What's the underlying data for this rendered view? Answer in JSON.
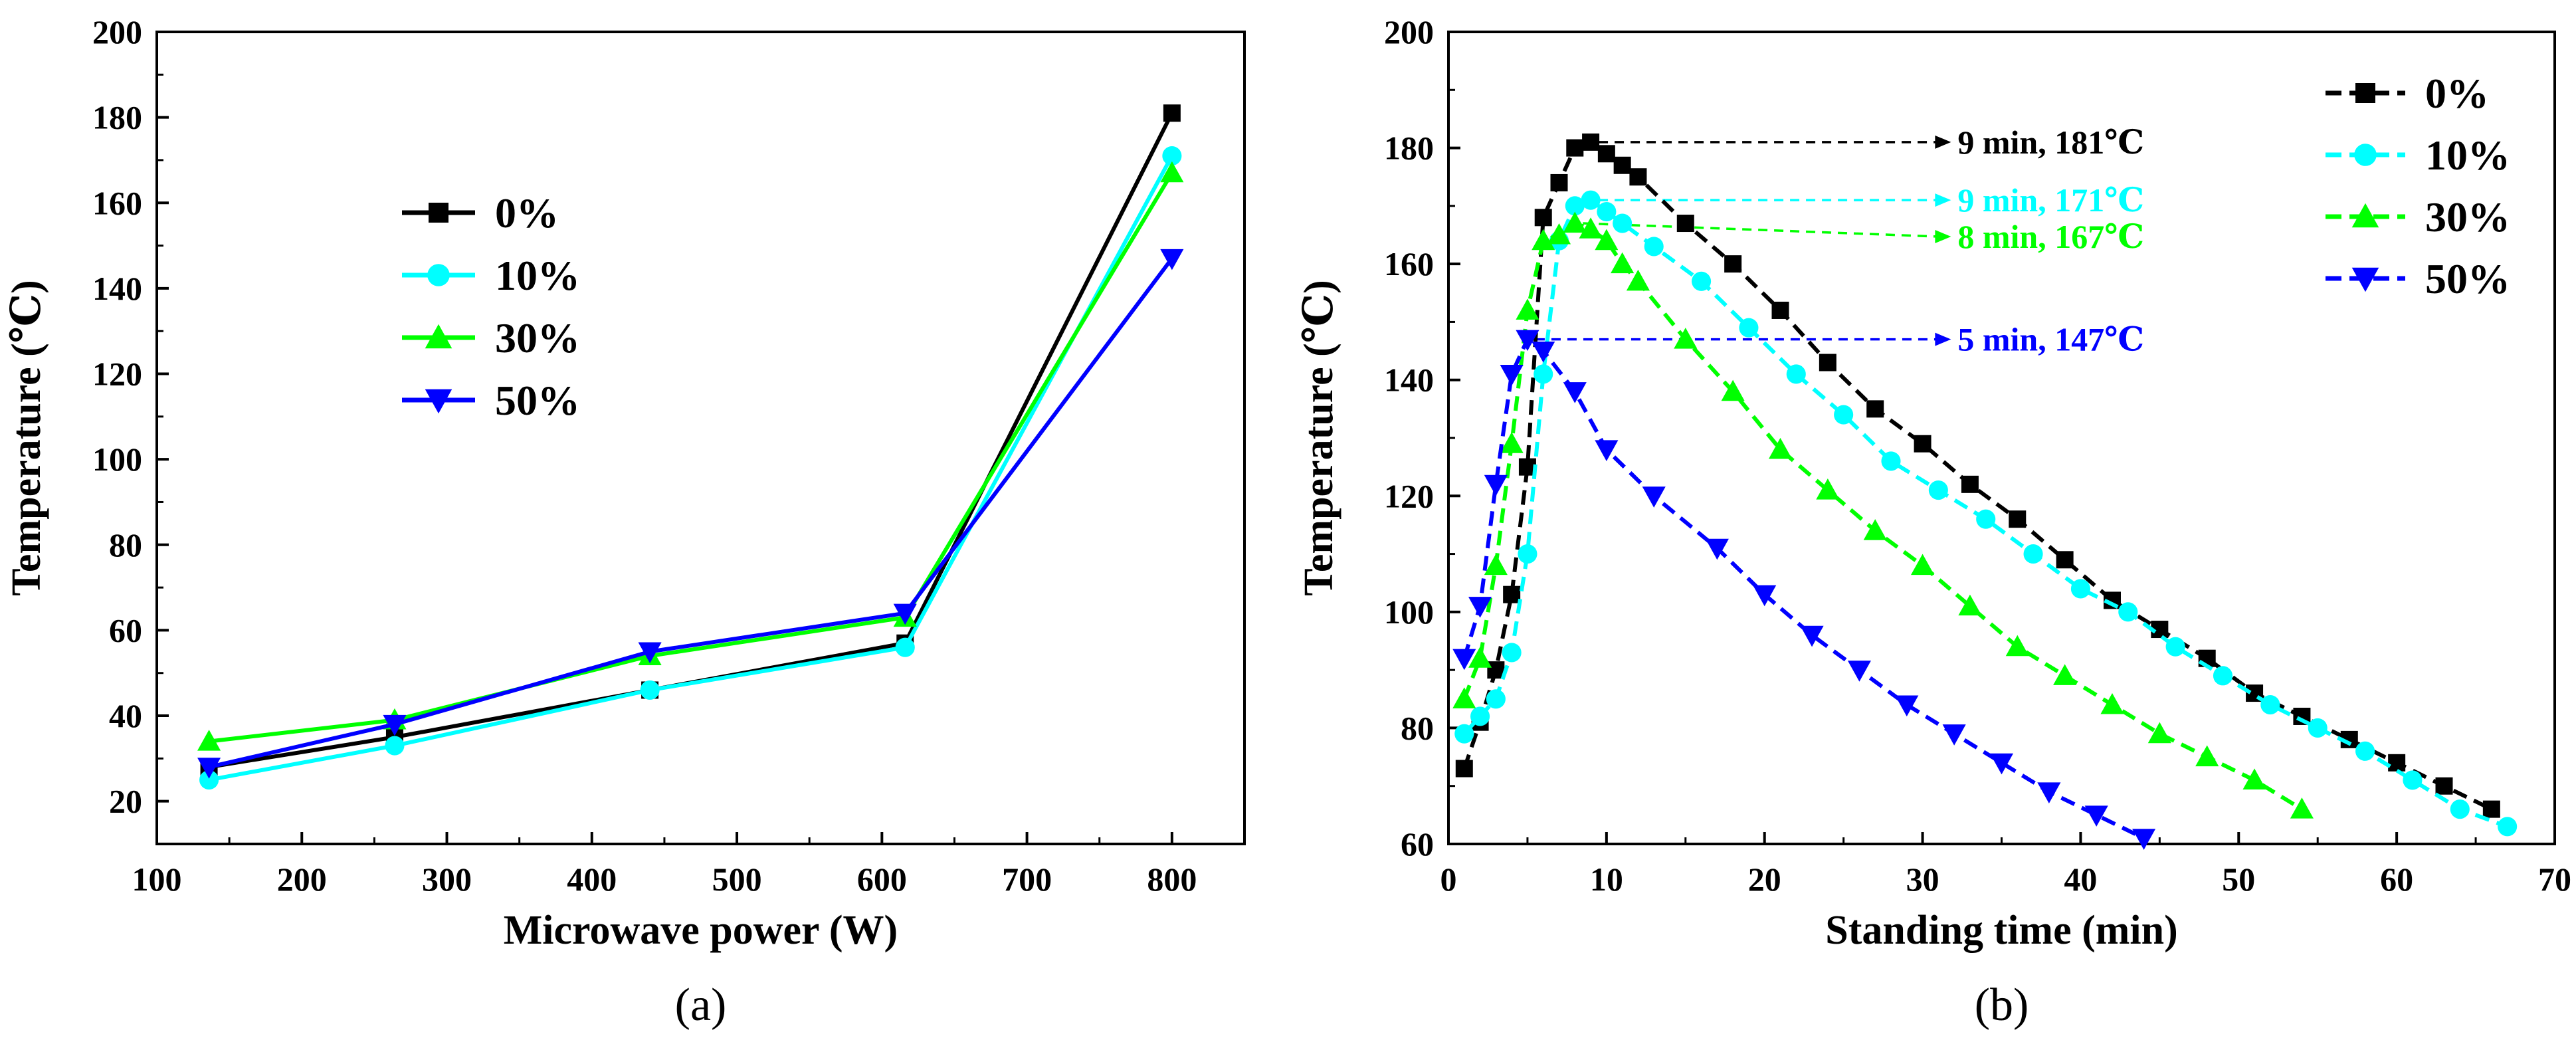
{
  "chart_data": [
    {
      "type": "line",
      "caption": "(a)",
      "xlabel": "Microwave power (W)",
      "ylabel": "Temperature (℃)",
      "xlim": [
        100,
        850
      ],
      "ylim": [
        10,
        200
      ],
      "xticks": [
        100,
        200,
        300,
        400,
        500,
        600,
        700,
        800
      ],
      "yticks": [
        20,
        40,
        60,
        80,
        100,
        120,
        140,
        160,
        180,
        200
      ],
      "legend_position": "upper-left-inside",
      "series": [
        {
          "name": "0%",
          "color": "#000000",
          "marker": "square",
          "dashed": false,
          "x": [
            136,
            264,
            440,
            616,
            800
          ],
          "values": [
            28,
            35,
            46,
            57,
            181
          ]
        },
        {
          "name": "10%",
          "color": "#00FFFF",
          "marker": "circle",
          "dashed": false,
          "x": [
            136,
            264,
            440,
            616,
            800
          ],
          "values": [
            25,
            33,
            46,
            56,
            171
          ]
        },
        {
          "name": "30%",
          "color": "#00FF00",
          "marker": "triangle-up",
          "dashed": false,
          "x": [
            136,
            264,
            440,
            616,
            800
          ],
          "values": [
            34,
            39,
            54,
            63,
            167
          ]
        },
        {
          "name": "50%",
          "color": "#0000FF",
          "marker": "triangle-down",
          "dashed": false,
          "x": [
            136,
            264,
            440,
            616,
            800
          ],
          "values": [
            28,
            38,
            55,
            64,
            147
          ]
        }
      ]
    },
    {
      "type": "line",
      "caption": "(b)",
      "xlabel": "Standing time (min)",
      "ylabel": "Temperature (℃)",
      "xlim": [
        0,
        70
      ],
      "ylim": [
        60,
        200
      ],
      "xticks": [
        0,
        10,
        20,
        30,
        40,
        50,
        60,
        70
      ],
      "yticks": [
        60,
        80,
        100,
        120,
        140,
        160,
        180,
        200
      ],
      "legend_position": "upper-right-inside",
      "series": [
        {
          "name": "0%",
          "color": "#000000",
          "marker": "square",
          "dashed": true,
          "x": [
            1,
            2,
            3,
            4,
            5,
            6,
            7,
            8,
            9,
            10,
            11,
            12,
            15,
            18,
            21,
            24,
            27,
            30,
            33,
            36,
            39,
            42,
            45,
            48,
            51,
            54,
            57,
            60,
            63,
            66
          ],
          "values": [
            73,
            81,
            90,
            103,
            125,
            168,
            174,
            180,
            181,
            179,
            177,
            175,
            167,
            160,
            152,
            143,
            135,
            129,
            122,
            116,
            109,
            102,
            97,
            92,
            86,
            82,
            78,
            74,
            70,
            66
          ]
        },
        {
          "name": "10%",
          "color": "#00FFFF",
          "marker": "circle",
          "dashed": true,
          "x": [
            1,
            2,
            3,
            4,
            5,
            6,
            7,
            8,
            9,
            10,
            11,
            13,
            16,
            19,
            22,
            25,
            28,
            31,
            34,
            37,
            40,
            43,
            46,
            49,
            52,
            55,
            58,
            61,
            64,
            67
          ],
          "values": [
            79,
            82,
            85,
            93,
            110,
            141,
            164,
            170,
            171,
            169,
            167,
            163,
            157,
            149,
            141,
            134,
            126,
            121,
            116,
            110,
            104,
            100,
            94,
            89,
            84,
            80,
            76,
            71,
            66,
            63
          ]
        },
        {
          "name": "30%",
          "color": "#00FF00",
          "marker": "triangle-up",
          "dashed": true,
          "x": [
            1,
            2,
            3,
            4,
            5,
            6,
            7,
            8,
            9,
            10,
            11,
            12,
            15,
            18,
            21,
            24,
            27,
            30,
            33,
            36,
            39,
            42,
            45,
            48,
            51,
            54
          ],
          "values": [
            85,
            92,
            108,
            129,
            152,
            164,
            165,
            167,
            166,
            164,
            160,
            157,
            147,
            138,
            128,
            121,
            114,
            108,
            101,
            94,
            89,
            84,
            79,
            75,
            71,
            66
          ]
        },
        {
          "name": "50%",
          "color": "#0000FF",
          "marker": "triangle-down",
          "dashed": true,
          "x": [
            1,
            2,
            3,
            4,
            5,
            6,
            8,
            10,
            13,
            17,
            20,
            23,
            26,
            29,
            32,
            35,
            38,
            41,
            44
          ],
          "values": [
            92,
            101,
            122,
            141,
            147,
            145,
            138,
            128,
            120,
            111,
            103,
            96,
            90,
            84,
            79,
            74,
            69,
            65,
            61
          ]
        }
      ],
      "annotations": [
        {
          "series": "0%",
          "color": "#000000",
          "x": 9,
          "y": 181,
          "text": "9 min, 181℃"
        },
        {
          "series": "10%",
          "color": "#00FFFF",
          "x": 9,
          "y": 171,
          "text": "9 min, 171℃"
        },
        {
          "series": "30%",
          "color": "#00FF00",
          "x": 8,
          "y": 167,
          "text": "8 min, 167℃"
        },
        {
          "series": "50%",
          "color": "#0000FF",
          "x": 5,
          "y": 147,
          "text": "5 min, 147℃"
        }
      ]
    }
  ]
}
